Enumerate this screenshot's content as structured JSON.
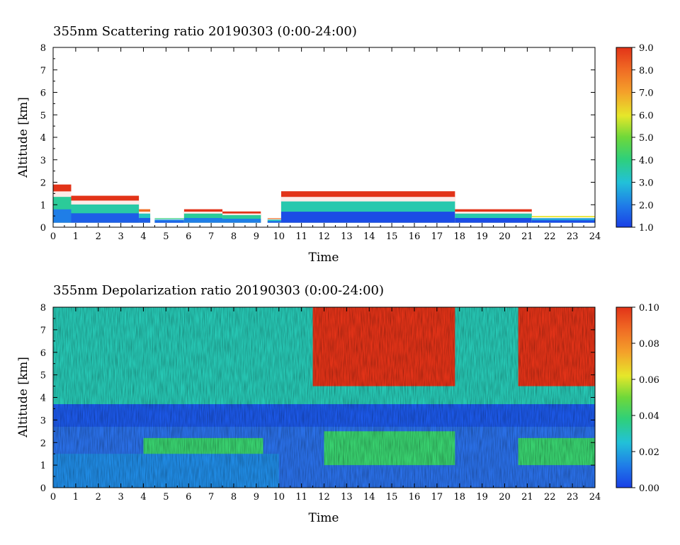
{
  "chart_data": [
    {
      "type": "heatmap",
      "title": "355nm Scattering ratio  20190303 (0:00-24:00)",
      "xlabel": "Time",
      "ylabel": "Altitude [km]",
      "xlim": [
        0,
        24
      ],
      "ylim": [
        0,
        8
      ],
      "x_ticks": [
        "0",
        "1",
        "2",
        "3",
        "4",
        "5",
        "6",
        "7",
        "8",
        "9",
        "10",
        "11",
        "12",
        "13",
        "14",
        "15",
        "16",
        "17",
        "18",
        "19",
        "20",
        "21",
        "22",
        "23",
        "24"
      ],
      "y_ticks": [
        "0",
        "1",
        "2",
        "3",
        "4",
        "5",
        "6",
        "7",
        "8"
      ],
      "colorbar": {
        "range": [
          1.0,
          9.0
        ],
        "ticks": [
          "1.0",
          "2.0",
          "3.0",
          "4.0",
          "5.0",
          "6.0",
          "7.0",
          "8.0",
          "9.0"
        ]
      },
      "features": [
        {
          "t0": 0.0,
          "t1": 0.8,
          "alt_top": 1.9,
          "value_range": [
            2.0,
            9.0
          ]
        },
        {
          "t0": 0.8,
          "t1": 3.8,
          "alt_top": 1.4,
          "value_range": [
            1.5,
            9.0
          ]
        },
        {
          "t0": 3.8,
          "t1": 4.3,
          "alt_top": 0.8,
          "value_range": [
            1.5,
            8.0
          ]
        },
        {
          "t0": 4.5,
          "t1": 5.8,
          "alt_top": 0.4,
          "value_range": [
            1.5,
            4.0
          ]
        },
        {
          "t0": 5.8,
          "t1": 7.5,
          "alt_top": 0.8,
          "value_range": [
            2.0,
            9.0
          ]
        },
        {
          "t0": 7.5,
          "t1": 9.2,
          "alt_top": 0.7,
          "value_range": [
            2.0,
            9.0
          ]
        },
        {
          "t0": 9.5,
          "t1": 10.1,
          "alt_top": 0.4,
          "value_range": [
            1.5,
            8.0
          ]
        },
        {
          "t0": 10.1,
          "t1": 17.8,
          "alt_top": 1.6,
          "value_range": [
            1.2,
            9.0
          ]
        },
        {
          "t0": 17.8,
          "t1": 21.2,
          "alt_top": 0.8,
          "value_range": [
            1.2,
            9.0
          ]
        },
        {
          "t0": 21.2,
          "t1": 24.0,
          "alt_top": 0.5,
          "value_range": [
            1.2,
            6.0
          ]
        }
      ]
    },
    {
      "type": "heatmap",
      "title": "355nm Depolarization ratio  20190303 (0:00-24:00)",
      "xlabel": "Time",
      "ylabel": "Altitude [km]",
      "xlim": [
        0,
        24
      ],
      "ylim": [
        0,
        8
      ],
      "x_ticks": [
        "0",
        "1",
        "2",
        "3",
        "4",
        "5",
        "6",
        "7",
        "8",
        "9",
        "10",
        "11",
        "12",
        "13",
        "14",
        "15",
        "16",
        "17",
        "18",
        "19",
        "20",
        "21",
        "22",
        "23",
        "24"
      ],
      "y_ticks": [
        "0",
        "1",
        "2",
        "3",
        "4",
        "5",
        "6",
        "7",
        "8"
      ],
      "colorbar": {
        "range": [
          0.0,
          0.1
        ],
        "ticks": [
          "0.00",
          "0.02",
          "0.04",
          "0.06",
          "0.08",
          "0.10"
        ]
      },
      "features": [
        {
          "t0": 0.0,
          "t1": 24.0,
          "alt0": 2.7,
          "alt1": 3.7,
          "value": 0.005
        },
        {
          "t0": 0.0,
          "t1": 10.0,
          "alt0": 0.0,
          "alt1": 1.5,
          "value": 0.015
        },
        {
          "t0": 4.0,
          "t1": 9.3,
          "alt0": 1.0,
          "alt1": 2.2,
          "value": 0.04
        },
        {
          "t0": 12.0,
          "t1": 17.8,
          "alt0": 1.0,
          "alt1": 2.5,
          "value": 0.04
        },
        {
          "t0": 20.6,
          "t1": 24.0,
          "alt0": 1.0,
          "alt1": 2.2,
          "value": 0.04
        },
        {
          "t0": 11.5,
          "t1": 17.8,
          "alt0": 4.5,
          "alt1": 8.0,
          "value": 0.1
        },
        {
          "t0": 20.6,
          "t1": 24.0,
          "alt0": 4.5,
          "alt1": 8.0,
          "value": 0.1
        },
        {
          "t0": 0.0,
          "t1": 24.0,
          "alt0": 3.7,
          "alt1": 8.0,
          "value": 0.03
        }
      ]
    }
  ]
}
